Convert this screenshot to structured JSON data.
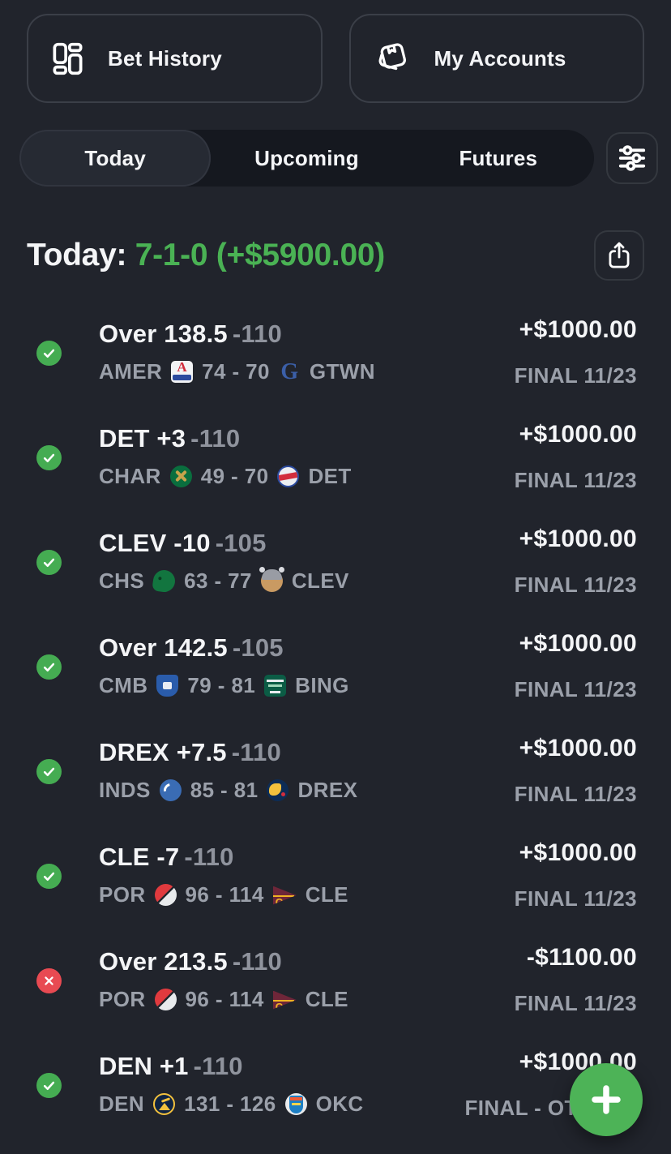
{
  "theme": {
    "background": "#21242c",
    "tab_bar_bg": "#15181f",
    "active_tab_bg": "#262a33",
    "outline": "#3b3f48",
    "text_primary": "#f4f5f7",
    "text_muted": "#9ba0aa",
    "accent_green": "#4ab254",
    "win_badge_green": "#45ac52",
    "loss_badge_red": "#e84a52",
    "fab_green": "#4db357"
  },
  "header_buttons": [
    {
      "label": "Bet History",
      "icon": "bet-history-icon"
    },
    {
      "label": "My Accounts",
      "icon": "accounts-wallet-icon"
    }
  ],
  "tabs": {
    "items": [
      {
        "label": "Today",
        "active": true
      },
      {
        "label": "Upcoming",
        "active": false
      },
      {
        "label": "Futures",
        "active": false
      }
    ],
    "filter_icon": "sliders-icon"
  },
  "summary": {
    "label": "Today:",
    "record": "7-1-0",
    "profit": "(+$5900.00)",
    "share_icon": "share-icon"
  },
  "result_icons": {
    "win": "win-check-icon",
    "loss": "loss-x-icon"
  },
  "bets": [
    {
      "result": "win",
      "line": "Over 138.5",
      "odds": "-110",
      "away": "AMER",
      "away_logo": "american-eagles-logo",
      "score": "74 - 70",
      "home": "GTWN",
      "home_logo": "georgetown-hoyas-logo",
      "amount": "+$1000.00",
      "status": "FINAL 11/23"
    },
    {
      "result": "win",
      "line": "DET +3",
      "odds": "-110",
      "away": "CHAR",
      "away_logo": "charlotte-49ers-logo",
      "score": "49 - 70",
      "home": "DET",
      "home_logo": "detroit-titans-logo",
      "amount": "+$1000.00",
      "status": "FINAL 11/23"
    },
    {
      "result": "win",
      "line": "CLEV -10",
      "odds": "-105",
      "away": "CHS",
      "away_logo": "chicago-state-cougars-logo",
      "score": "63 - 77",
      "home": "CLEV",
      "home_logo": "cleveland-state-vikings-logo",
      "amount": "+$1000.00",
      "status": "FINAL 11/23"
    },
    {
      "result": "win",
      "line": "Over 142.5",
      "odds": "-105",
      "away": "CMB",
      "away_logo": "columbia-lions-logo",
      "score": "79 - 81",
      "home": "BING",
      "home_logo": "binghamton-bearcats-logo",
      "amount": "+$1000.00",
      "status": "FINAL 11/23"
    },
    {
      "result": "win",
      "line": "DREX +7.5",
      "odds": "-110",
      "away": "INDS",
      "away_logo": "indiana-state-sycamores-logo",
      "score": "85 - 81",
      "home": "DREX",
      "home_logo": "drexel-dragons-logo",
      "amount": "+$1000.00",
      "status": "FINAL 11/23"
    },
    {
      "result": "win",
      "line": "CLE -7",
      "odds": "-110",
      "away": "POR",
      "away_logo": "trail-blazers-logo",
      "score": "96 - 114",
      "home": "CLE",
      "home_logo": "cavaliers-logo",
      "amount": "+$1000.00",
      "status": "FINAL 11/23"
    },
    {
      "result": "loss",
      "line": "Over 213.5",
      "odds": "-110",
      "away": "POR",
      "away_logo": "trail-blazers-logo",
      "score": "96 - 114",
      "home": "CLE",
      "home_logo": "cavaliers-logo",
      "amount": "-$1100.00",
      "status": "FINAL 11/23"
    },
    {
      "result": "win",
      "line": "DEN +1",
      "odds": "-110",
      "away": "DEN",
      "away_logo": "nuggets-logo",
      "score": "131 - 126",
      "home": "OKC",
      "home_logo": "thunder-logo",
      "amount": "+$1000.00",
      "status": "FINAL - OT 11/23"
    }
  ],
  "fab": {
    "icon": "plus-icon"
  }
}
